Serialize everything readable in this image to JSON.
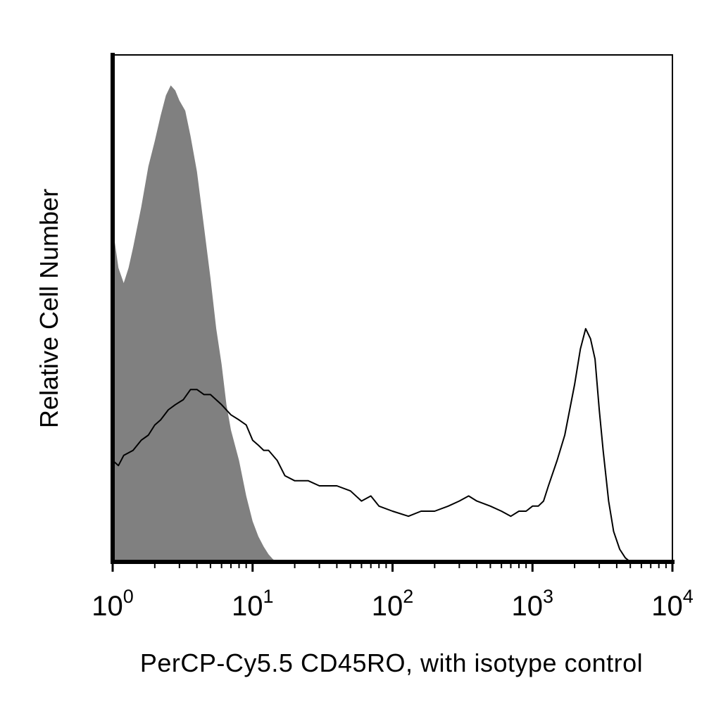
{
  "chart_data": {
    "type": "area",
    "xlabel": "PerCP-Cy5.5 CD45RO, with isotype control",
    "ylabel": "Relative Cell Number",
    "x_scale": "log",
    "xlim": [
      1,
      10000
    ],
    "ylim": [
      0,
      1
    ],
    "grid": false,
    "x_ticks": [
      {
        "value": 1,
        "base": "10",
        "exp": "0"
      },
      {
        "value": 10,
        "base": "10",
        "exp": "1"
      },
      {
        "value": 100,
        "base": "10",
        "exp": "2"
      },
      {
        "value": 1000,
        "base": "10",
        "exp": "3"
      },
      {
        "value": 10000,
        "base": "10",
        "exp": "4"
      }
    ],
    "series": [
      {
        "role": "isotype control",
        "style": "filled",
        "fill": "#808080",
        "points": [
          [
            1.0,
            0.66
          ],
          [
            1.1,
            0.58
          ],
          [
            1.2,
            0.55
          ],
          [
            1.3,
            0.58
          ],
          [
            1.4,
            0.62
          ],
          [
            1.6,
            0.7
          ],
          [
            1.8,
            0.78
          ],
          [
            2.0,
            0.83
          ],
          [
            2.2,
            0.88
          ],
          [
            2.4,
            0.92
          ],
          [
            2.6,
            0.94
          ],
          [
            2.8,
            0.93
          ],
          [
            3.0,
            0.91
          ],
          [
            3.3,
            0.89
          ],
          [
            3.6,
            0.84
          ],
          [
            4.0,
            0.77
          ],
          [
            4.5,
            0.66
          ],
          [
            5.0,
            0.56
          ],
          [
            5.5,
            0.46
          ],
          [
            6.0,
            0.39
          ],
          [
            6.5,
            0.31
          ],
          [
            7.0,
            0.26
          ],
          [
            8.0,
            0.2
          ],
          [
            9.0,
            0.13
          ],
          [
            10.0,
            0.08
          ],
          [
            11.0,
            0.05
          ],
          [
            12.0,
            0.03
          ],
          [
            13.0,
            0.015
          ],
          [
            14.0,
            0.005
          ],
          [
            15.0,
            0.0
          ]
        ]
      },
      {
        "role": "CD45RO",
        "style": "line",
        "stroke": "#000000",
        "points": [
          [
            1.0,
            0.2
          ],
          [
            1.1,
            0.19
          ],
          [
            1.2,
            0.21
          ],
          [
            1.4,
            0.22
          ],
          [
            1.6,
            0.24
          ],
          [
            1.8,
            0.25
          ],
          [
            2.0,
            0.27
          ],
          [
            2.2,
            0.28
          ],
          [
            2.5,
            0.3
          ],
          [
            2.8,
            0.31
          ],
          [
            3.2,
            0.32
          ],
          [
            3.6,
            0.34
          ],
          [
            4.0,
            0.34
          ],
          [
            4.5,
            0.33
          ],
          [
            5.0,
            0.33
          ],
          [
            6.0,
            0.31
          ],
          [
            7.0,
            0.29
          ],
          [
            8.0,
            0.28
          ],
          [
            9.0,
            0.27
          ],
          [
            10.0,
            0.24
          ],
          [
            11.0,
            0.23
          ],
          [
            12.0,
            0.22
          ],
          [
            13.0,
            0.22
          ],
          [
            15.0,
            0.2
          ],
          [
            17.0,
            0.17
          ],
          [
            20.0,
            0.16
          ],
          [
            25.0,
            0.16
          ],
          [
            30.0,
            0.15
          ],
          [
            40.0,
            0.15
          ],
          [
            50.0,
            0.14
          ],
          [
            60.0,
            0.12
          ],
          [
            70.0,
            0.13
          ],
          [
            80.0,
            0.11
          ],
          [
            100.0,
            0.1
          ],
          [
            130.0,
            0.09
          ],
          [
            160.0,
            0.1
          ],
          [
            200.0,
            0.1
          ],
          [
            250.0,
            0.11
          ],
          [
            300.0,
            0.12
          ],
          [
            350.0,
            0.13
          ],
          [
            400.0,
            0.12
          ],
          [
            500.0,
            0.11
          ],
          [
            600.0,
            0.1
          ],
          [
            700.0,
            0.09
          ],
          [
            800.0,
            0.1
          ],
          [
            900.0,
            0.1
          ],
          [
            1000.0,
            0.11
          ],
          [
            1100.0,
            0.11
          ],
          [
            1200.0,
            0.12
          ],
          [
            1300.0,
            0.15
          ],
          [
            1500.0,
            0.2
          ],
          [
            1700.0,
            0.25
          ],
          [
            2000.0,
            0.35
          ],
          [
            2200.0,
            0.42
          ],
          [
            2400.0,
            0.46
          ],
          [
            2600.0,
            0.44
          ],
          [
            2800.0,
            0.4
          ],
          [
            3000.0,
            0.3
          ],
          [
            3200.0,
            0.22
          ],
          [
            3500.0,
            0.12
          ],
          [
            3800.0,
            0.06
          ],
          [
            4200.0,
            0.025
          ],
          [
            4600.0,
            0.008
          ],
          [
            5000.0,
            0.0
          ]
        ]
      }
    ]
  }
}
